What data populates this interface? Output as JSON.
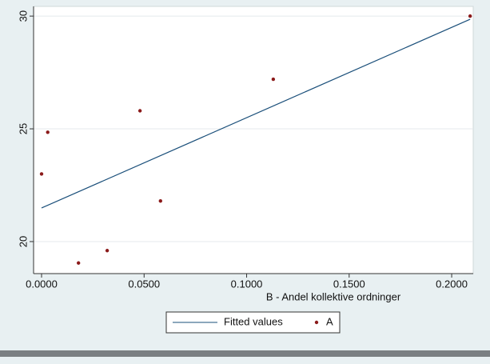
{
  "chart_data": {
    "type": "scatter",
    "x_label": "B  - Andel kollektive ordninger",
    "xlim": [
      -0.0039,
      0.2105
    ],
    "ylim": [
      18.58,
      30.43
    ],
    "xticks": [
      {
        "value": 0,
        "label": "0.0000"
      },
      {
        "value": 0.05,
        "label": "0.0500"
      },
      {
        "value": 0.1,
        "label": "0.1000"
      },
      {
        "value": 0.15,
        "label": "0.1500"
      },
      {
        "value": 0.2,
        "label": "0.2000"
      }
    ],
    "yticks": [
      20,
      25,
      30
    ],
    "grid": true,
    "series": [
      {
        "name": "Fitted values",
        "type": "line",
        "color": "#1a4f7a",
        "x": [
          0,
          0.209
        ],
        "values": [
          21.49,
          29.86
        ]
      },
      {
        "name": "A",
        "type": "scatter",
        "color": "#8b1a1a",
        "x": [
          0,
          0.003,
          0.018,
          0.032,
          0.048,
          0.058,
          0.113,
          0.209
        ],
        "values": [
          23.0,
          24.85,
          19.05,
          19.6,
          25.8,
          21.8,
          27.2,
          30.0
        ]
      }
    ]
  }
}
